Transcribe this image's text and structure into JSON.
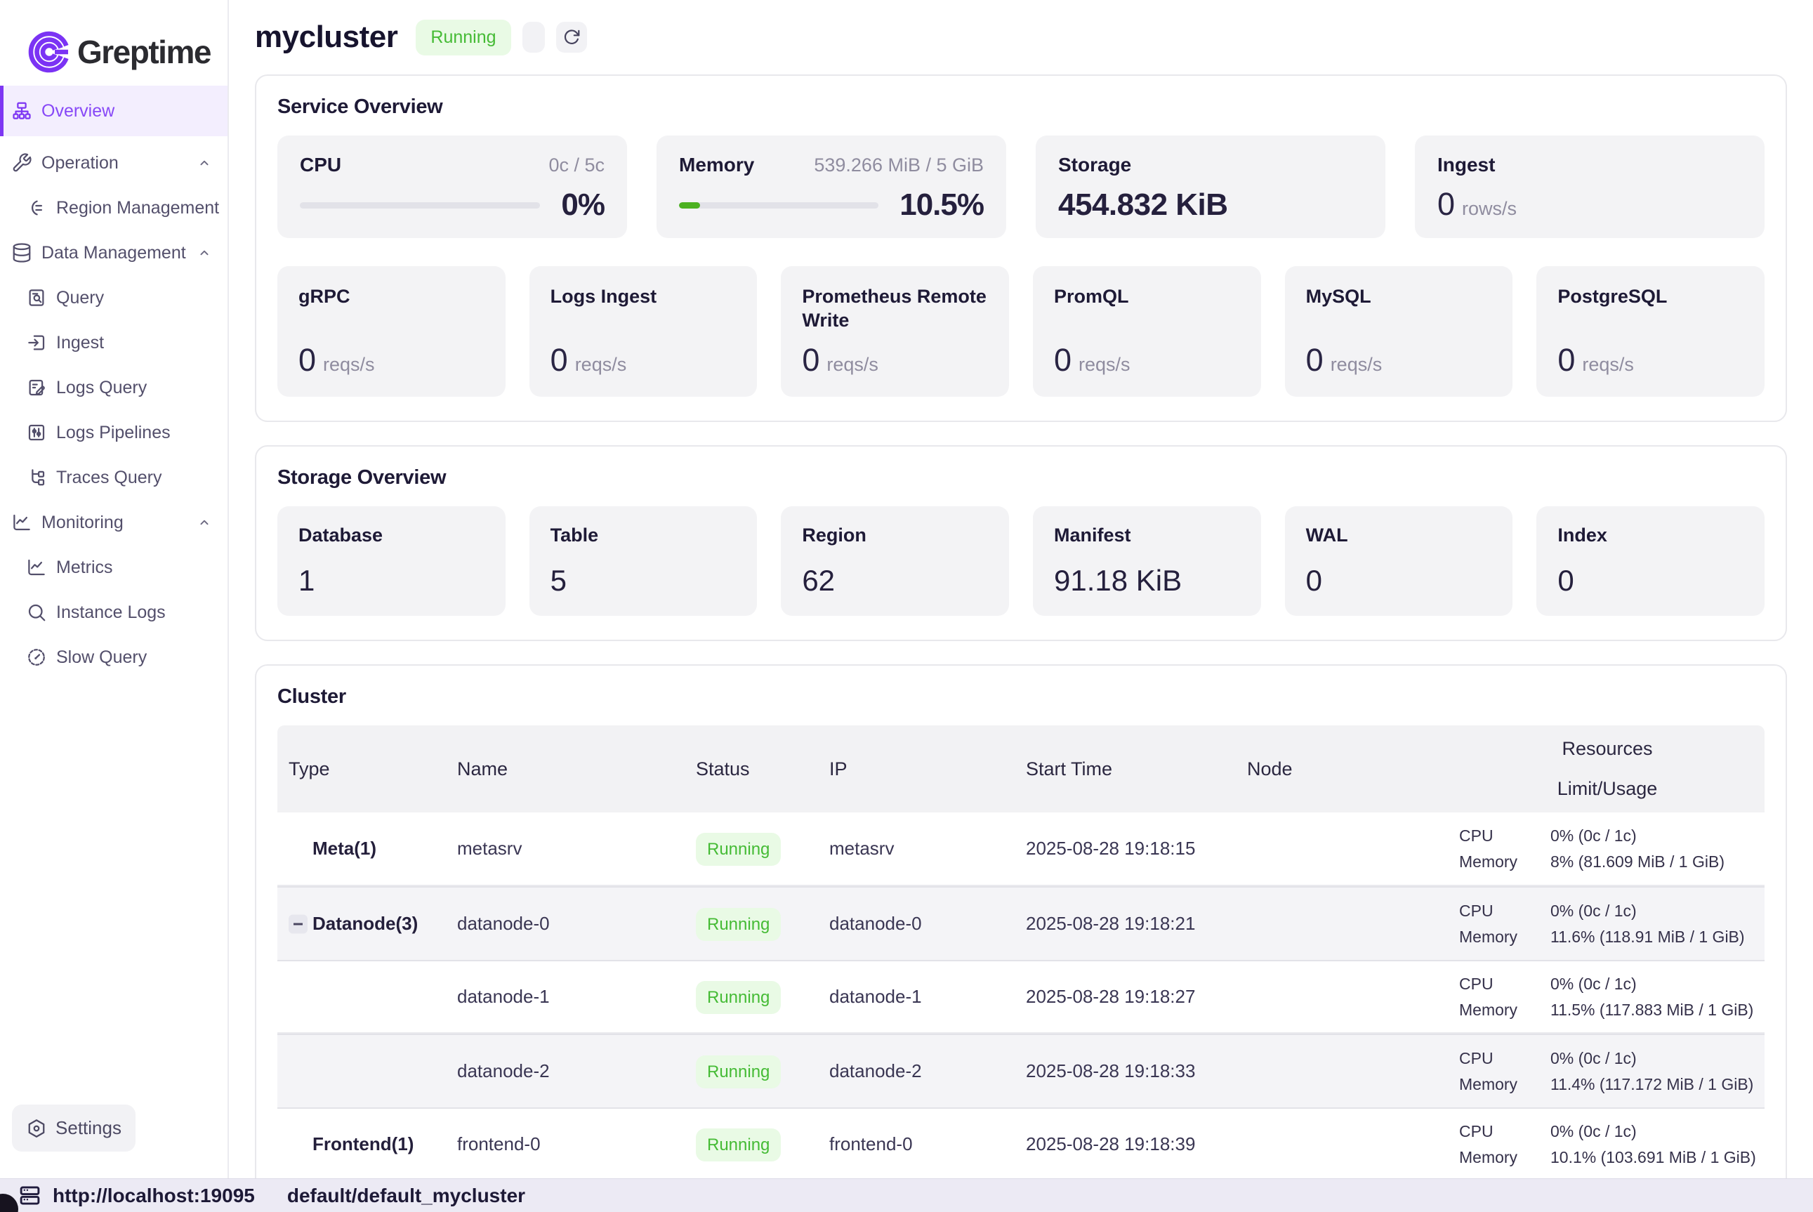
{
  "brand": {
    "name": "Greptime"
  },
  "colors": {
    "accent": "#7d36f3",
    "green_bar": "#4cb121",
    "badge_green": "#45bb35",
    "badge_bg": "#e9fae5"
  },
  "sidebar": {
    "items": [
      {
        "label": "Overview"
      },
      {
        "label": "Operation"
      },
      {
        "label": "Region Management"
      },
      {
        "label": "Data Management"
      },
      {
        "label": "Query"
      },
      {
        "label": "Ingest"
      },
      {
        "label": "Logs Query"
      },
      {
        "label": "Logs Pipelines"
      },
      {
        "label": "Traces Query"
      },
      {
        "label": "Monitoring"
      },
      {
        "label": "Metrics"
      },
      {
        "label": "Instance Logs"
      },
      {
        "label": "Slow Query"
      }
    ],
    "settings_label": "Settings"
  },
  "header": {
    "title": "mycluster",
    "status": "Running"
  },
  "service_overview": {
    "title": "Service Overview",
    "cpu": {
      "label": "CPU",
      "limit": "0c / 5c",
      "percent": "0%"
    },
    "memory": {
      "label": "Memory",
      "limit": "539.266 MiB / 5 GiB",
      "percent": "10.5%"
    },
    "storage": {
      "label": "Storage",
      "value": "454.832 KiB"
    },
    "ingest": {
      "label": "Ingest",
      "value": "0",
      "unit": "rows/s"
    },
    "protocols": [
      {
        "label": "gRPC",
        "value": "0",
        "unit": "reqs/s"
      },
      {
        "label": "Logs Ingest",
        "value": "0",
        "unit": "reqs/s"
      },
      {
        "label": "Prometheus Remote Write",
        "value": "0",
        "unit": "reqs/s"
      },
      {
        "label": "PromQL",
        "value": "0",
        "unit": "reqs/s"
      },
      {
        "label": "MySQL",
        "value": "0",
        "unit": "reqs/s"
      },
      {
        "label": "PostgreSQL",
        "value": "0",
        "unit": "reqs/s"
      }
    ]
  },
  "storage_overview": {
    "title": "Storage Overview",
    "cards": [
      {
        "label": "Database",
        "value": "1"
      },
      {
        "label": "Table",
        "value": "5"
      },
      {
        "label": "Region",
        "value": "62"
      },
      {
        "label": "Manifest",
        "value": "91.18 KiB"
      },
      {
        "label": "WAL",
        "value": "0"
      },
      {
        "label": "Index",
        "value": "0"
      }
    ]
  },
  "cluster": {
    "title": "Cluster",
    "columns": {
      "type": "Type",
      "name": "Name",
      "status": "Status",
      "ip": "IP",
      "start_time": "Start Time",
      "node": "Node",
      "resources": "Resources",
      "limit_usage": "Limit/Usage"
    },
    "resource_labels": {
      "cpu": "CPU",
      "memory": "Memory"
    },
    "rows": [
      {
        "type": "Meta(1)",
        "name": "metasrv",
        "status": "Running",
        "ip": "metasrv",
        "start_time": "2025-08-28 19:18:15",
        "cpu": "0% (0c / 1c)",
        "memory": "8% (81.609 MiB / 1 GiB)"
      },
      {
        "type": "Datanode(3)",
        "name": "datanode-0",
        "status": "Running",
        "ip": "datanode-0",
        "start_time": "2025-08-28 19:18:21",
        "cpu": "0% (0c / 1c)",
        "memory": "11.6% (118.91 MiB / 1 GiB)"
      },
      {
        "type": "",
        "name": "datanode-1",
        "status": "Running",
        "ip": "datanode-1",
        "start_time": "2025-08-28 19:18:27",
        "cpu": "0% (0c / 1c)",
        "memory": "11.5% (117.883 MiB / 1 GiB)"
      },
      {
        "type": "",
        "name": "datanode-2",
        "status": "Running",
        "ip": "datanode-2",
        "start_time": "2025-08-28 19:18:33",
        "cpu": "0% (0c / 1c)",
        "memory": "11.4% (117.172 MiB / 1 GiB)"
      },
      {
        "type": "Frontend(1)",
        "name": "frontend-0",
        "status": "Running",
        "ip": "frontend-0",
        "start_time": "2025-08-28 19:18:39",
        "cpu": "0% (0c / 1c)",
        "memory": "10.1% (103.691 MiB / 1 GiB)"
      }
    ]
  },
  "statusbar": {
    "url": "http://localhost:19095",
    "database": "default/default_mycluster"
  }
}
